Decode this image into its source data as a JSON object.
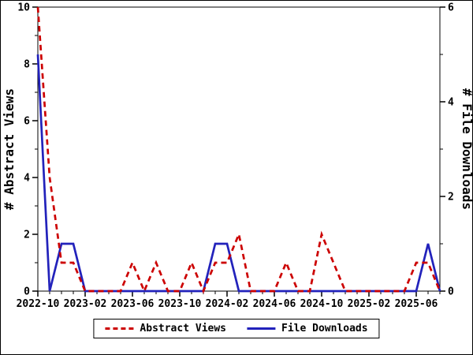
{
  "chart_data": {
    "type": "line",
    "title": "",
    "grid": false,
    "x_categories": [
      "2022-10",
      "2022-11",
      "2022-12",
      "2023-01",
      "2023-02",
      "2023-03",
      "2023-04",
      "2023-05",
      "2023-06",
      "2023-07",
      "2023-08",
      "2023-09",
      "2023-10",
      "2023-11",
      "2023-12",
      "2024-01",
      "2024-02",
      "2024-03",
      "2024-04",
      "2024-05",
      "2024-06",
      "2024-07",
      "2024-08",
      "2024-09",
      "2024-10",
      "2024-11",
      "2024-12",
      "2025-01",
      "2025-02",
      "2025-03",
      "2025-04",
      "2025-05",
      "2025-06",
      "2025-07",
      "2025-08"
    ],
    "x_major_every": 4,
    "x_major_tick_labels": [
      "2022-10",
      "2023-02",
      "2023-06",
      "2023-10",
      "2024-02",
      "2024-06",
      "2024-10",
      "2025-02",
      "2025-06"
    ],
    "left_axis": {
      "label": "# Abstract Views",
      "min": 0,
      "max": 10,
      "major_ticks": [
        0,
        2,
        4,
        6,
        8,
        10
      ],
      "minor_ticks": [
        1,
        3,
        5,
        7,
        9
      ]
    },
    "right_axis": {
      "label": "# File Downloads",
      "min": 0,
      "max": 6,
      "major_ticks": [
        0,
        2,
        4,
        6
      ],
      "minor_ticks": [
        1,
        3,
        5
      ]
    },
    "series": [
      {
        "name": "Abstract Views",
        "axis": "left",
        "color": "#cc0000",
        "style": "dashed",
        "values": [
          10,
          4,
          1,
          1,
          0,
          0,
          0,
          0,
          1,
          0,
          1,
          0,
          0,
          1,
          0,
          1,
          1,
          2,
          0,
          0,
          0,
          1,
          0,
          0,
          2,
          1,
          0,
          0,
          0,
          0,
          0,
          0,
          1,
          1,
          0
        ]
      },
      {
        "name": "File Downloads",
        "axis": "right",
        "color": "#2222bb",
        "style": "solid",
        "values": [
          5,
          0,
          1,
          1,
          0,
          0,
          0,
          0,
          0,
          0,
          0,
          0,
          0,
          0,
          0,
          1,
          1,
          0,
          0,
          0,
          0,
          0,
          0,
          0,
          0,
          0,
          0,
          0,
          0,
          0,
          0,
          0,
          0,
          1,
          0
        ]
      }
    ],
    "legend": {
      "position": "bottom"
    },
    "frame_color": "#000000",
    "background_color": "#ffffff"
  }
}
